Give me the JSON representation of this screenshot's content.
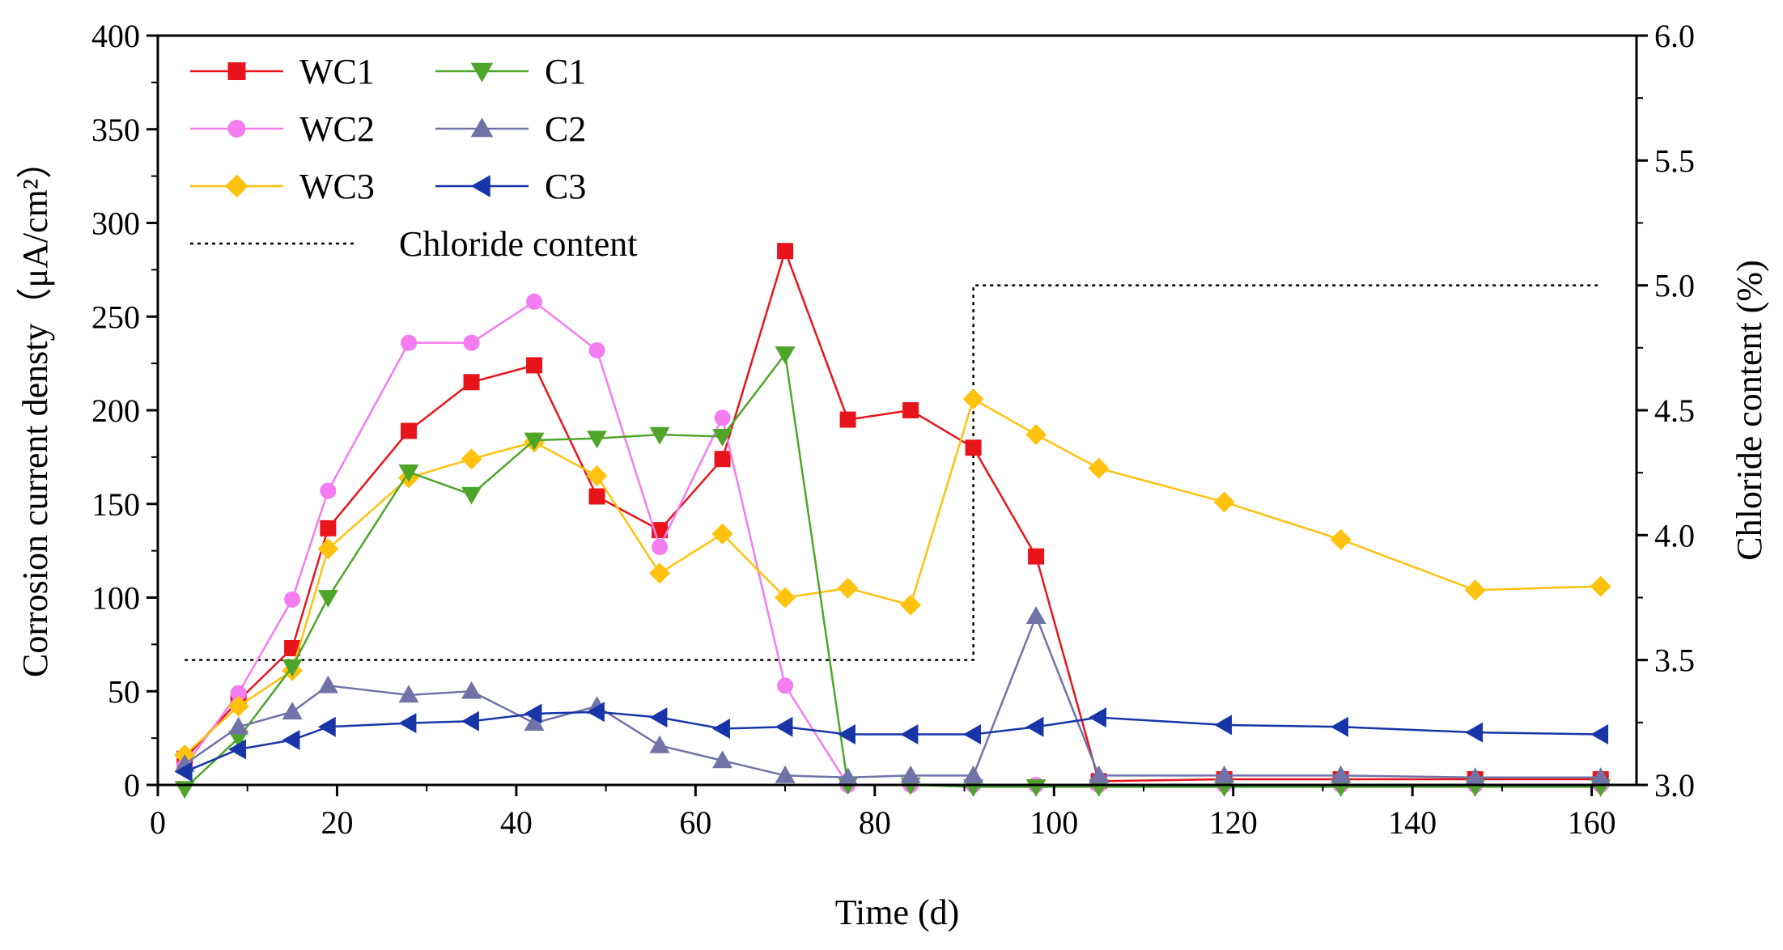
{
  "chart_data": {
    "type": "line",
    "xlabel": "Time (d)",
    "ylabel": "Corrosion current densty（μA/cm²）",
    "y2label": "Chloride content (%)",
    "xlim": [
      0,
      165
    ],
    "ylim": [
      0,
      400
    ],
    "y2lim": [
      3.0,
      6.0
    ],
    "xticks": [
      0,
      20,
      40,
      60,
      80,
      100,
      120,
      140,
      160
    ],
    "yticks": [
      0,
      50,
      100,
      150,
      200,
      250,
      300,
      350,
      400
    ],
    "y2ticks": [
      "3.0",
      "3.5",
      "4.0",
      "4.5",
      "5.0",
      "5.5",
      "6.0"
    ],
    "legend_position": "top-left",
    "series": [
      {
        "name": "WC1",
        "color": "#e8141c",
        "marker": "square",
        "x": [
          3,
          9,
          15,
          19,
          28,
          35,
          42,
          49,
          56,
          63,
          70,
          77,
          84,
          91,
          98,
          105,
          119,
          132,
          147,
          161
        ],
        "y": [
          14,
          45,
          73,
          137,
          189,
          215,
          224,
          154,
          136,
          174,
          285,
          195,
          200,
          180,
          122,
          2,
          3,
          3,
          3,
          3
        ]
      },
      {
        "name": "WC2",
        "color": "#f37cf0",
        "marker": "circle",
        "x": [
          3,
          9,
          15,
          19,
          28,
          35,
          42,
          49,
          56,
          63,
          70,
          77,
          84,
          91,
          98,
          105,
          119,
          132,
          147,
          161
        ],
        "y": [
          10,
          49,
          99,
          157,
          236,
          236,
          258,
          232,
          127,
          196,
          53,
          0,
          0,
          0,
          0,
          0,
          0,
          0,
          0,
          0
        ]
      },
      {
        "name": "WC3",
        "color": "#ffc20e",
        "marker": "diamond",
        "x": [
          3,
          9,
          15,
          19,
          28,
          35,
          42,
          49,
          56,
          63,
          70,
          77,
          84,
          91,
          98,
          105,
          119,
          132,
          147,
          161
        ],
        "y": [
          16,
          42,
          61,
          126,
          164,
          174,
          183,
          165,
          113,
          134,
          100,
          105,
          96,
          206,
          187,
          169,
          151,
          131,
          104,
          106
        ]
      },
      {
        "name": "C1",
        "color": "#4ea52a",
        "marker": "triangle-down",
        "x": [
          3,
          9,
          15,
          19,
          28,
          35,
          42,
          49,
          56,
          63,
          70,
          77,
          84,
          91,
          98,
          105,
          119,
          132,
          147,
          161
        ],
        "y": [
          -2,
          25,
          63,
          100,
          167,
          155,
          184,
          185,
          187,
          186,
          230,
          0,
          0,
          -1,
          -1,
          -1,
          -1,
          -1,
          -1,
          -1
        ]
      },
      {
        "name": "C2",
        "color": "#7173a8",
        "marker": "triangle-up",
        "x": [
          3,
          9,
          15,
          19,
          28,
          35,
          42,
          49,
          56,
          63,
          70,
          77,
          84,
          91,
          98,
          105,
          119,
          132,
          147,
          161
        ],
        "y": [
          11,
          31,
          39,
          53,
          48,
          50,
          33,
          42,
          21,
          13,
          5,
          4,
          5,
          5,
          90,
          5,
          5,
          5,
          4,
          4
        ]
      },
      {
        "name": "C3",
        "color": "#1835a8",
        "marker": "triangle-left",
        "x": [
          3,
          9,
          15,
          19,
          28,
          35,
          42,
          49,
          56,
          63,
          70,
          77,
          84,
          91,
          98,
          105,
          119,
          132,
          147,
          161
        ],
        "y": [
          7,
          19,
          24,
          31,
          33,
          34,
          38,
          39,
          36,
          30,
          31,
          27,
          27,
          27,
          31,
          36,
          32,
          31,
          28,
          27
        ]
      }
    ],
    "chloride": {
      "name": "Chloride content",
      "color": "#000000",
      "style": "dotted",
      "axis": "right",
      "x": [
        3,
        91,
        91,
        161
      ],
      "y": [
        3.5,
        3.5,
        5.0,
        5.0
      ]
    }
  }
}
